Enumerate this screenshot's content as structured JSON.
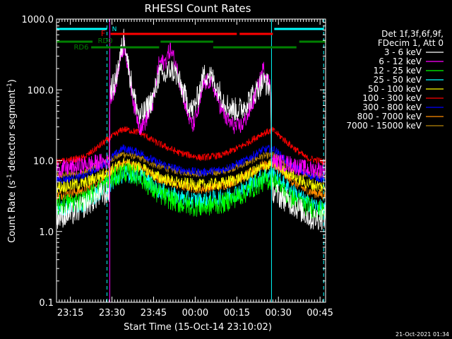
{
  "chart_data": {
    "type": "line",
    "title": "RHESSI Count Rates",
    "xlabel": "Start Time (15-Oct-14 23:10:02)",
    "ylabel_main": "Count Rate (s",
    "ylabel_sup1": "-1",
    "ylabel_mid": " detector segment",
    "ylabel_sup2": "-1",
    "ylabel_end": ")",
    "x_unit": "minutes after 23:10:02",
    "xlim": [
      0,
      97
    ],
    "ylim": [
      0.1,
      1000
    ],
    "yscale": "log",
    "x_ticks": [
      {
        "pos": 5,
        "label": "23:15"
      },
      {
        "pos": 20,
        "label": "23:30"
      },
      {
        "pos": 35,
        "label": "23:45"
      },
      {
        "pos": 50,
        "label": "00:00"
      },
      {
        "pos": 65,
        "label": "00:15"
      },
      {
        "pos": 80,
        "label": "00:30"
      },
      {
        "pos": 95,
        "label": "00:45"
      }
    ],
    "y_ticks": [
      {
        "value": 0.1,
        "label": "0.1"
      },
      {
        "value": 1,
        "label": "1.0"
      },
      {
        "value": 10,
        "label": "10.0"
      },
      {
        "value": 100,
        "label": "100.0"
      },
      {
        "value": 1000,
        "label": "1000.0"
      }
    ],
    "legend": {
      "header1": "Det 1f,3f,6f,9f,",
      "header2": "FDecim 1, Att 0",
      "placement": "right"
    },
    "series": [
      {
        "name": "3 - 6 keV",
        "color": "#ffffff",
        "points": [
          [
            0,
            1.6
          ],
          [
            6,
            1.8
          ],
          [
            12,
            2.6
          ],
          [
            16,
            3.3
          ],
          [
            19,
            3.5
          ],
          [
            19.2,
            100
          ],
          [
            21,
            120
          ],
          [
            23,
            300
          ],
          [
            24.5,
            600
          ],
          [
            26,
            200
          ],
          [
            28,
            80
          ],
          [
            30,
            40
          ],
          [
            32,
            50
          ],
          [
            35,
            80
          ],
          [
            37,
            170
          ],
          [
            39,
            150
          ],
          [
            41,
            200
          ],
          [
            43,
            170
          ],
          [
            45,
            110
          ],
          [
            47,
            70
          ],
          [
            49,
            50
          ],
          [
            51,
            80
          ],
          [
            53,
            160
          ],
          [
            55,
            165
          ],
          [
            57,
            130
          ],
          [
            59,
            90
          ],
          [
            61,
            65
          ],
          [
            63,
            55
          ],
          [
            65,
            52
          ],
          [
            67,
            55
          ],
          [
            69,
            70
          ],
          [
            71,
            85
          ],
          [
            73,
            110
          ],
          [
            74.5,
            130
          ],
          [
            76,
            120
          ],
          [
            77.3,
            100
          ],
          [
            77.5,
            4
          ],
          [
            80,
            3.2
          ],
          [
            84,
            2.6
          ],
          [
            88,
            2
          ],
          [
            92,
            1.5
          ],
          [
            97,
            1.6
          ]
        ],
        "noise": 0.35
      },
      {
        "name": "6 - 12 keV",
        "color": "#ff00ff",
        "points": [
          [
            0,
            7.5
          ],
          [
            6,
            8
          ],
          [
            12,
            9
          ],
          [
            16,
            9.5
          ],
          [
            19,
            10
          ],
          [
            19.2,
            80
          ],
          [
            21,
            100
          ],
          [
            23,
            280
          ],
          [
            24.5,
            450
          ],
          [
            26,
            180
          ],
          [
            28,
            60
          ],
          [
            30,
            30
          ],
          [
            32,
            35
          ],
          [
            35,
            70
          ],
          [
            37,
            250
          ],
          [
            39,
            240
          ],
          [
            41,
            380
          ],
          [
            43,
            230
          ],
          [
            45,
            110
          ],
          [
            47,
            50
          ],
          [
            49,
            30
          ],
          [
            51,
            50
          ],
          [
            53,
            120
          ],
          [
            55,
            135
          ],
          [
            57,
            100
          ],
          [
            59,
            60
          ],
          [
            61,
            40
          ],
          [
            63,
            33
          ],
          [
            65,
            30
          ],
          [
            67,
            32
          ],
          [
            69,
            45
          ],
          [
            71,
            70
          ],
          [
            73,
            120
          ],
          [
            74.5,
            200
          ],
          [
            76,
            150
          ],
          [
            77.3,
            100
          ],
          [
            77.5,
            10
          ],
          [
            80,
            9.5
          ],
          [
            84,
            9
          ],
          [
            88,
            8
          ],
          [
            92,
            7.5
          ],
          [
            97,
            7.5
          ]
        ],
        "noise": 0.25
      },
      {
        "name": "12 - 25 keV",
        "color": "#00ff00",
        "points": [
          [
            0,
            2.3
          ],
          [
            10,
            2.8
          ],
          [
            17,
            4.5
          ],
          [
            24,
            7
          ],
          [
            30,
            6
          ],
          [
            36,
            3.5
          ],
          [
            44,
            2.5
          ],
          [
            52,
            2.2
          ],
          [
            60,
            2.5
          ],
          [
            68,
            3.5
          ],
          [
            74,
            5
          ],
          [
            78,
            5.5
          ],
          [
            84,
            3
          ],
          [
            90,
            2.3
          ],
          [
            97,
            1.8
          ]
        ],
        "noise": 0.3
      },
      {
        "name": "25 - 50 keV",
        "color": "#00ffff",
        "points": [
          [
            0,
            2.0
          ],
          [
            10,
            2.5
          ],
          [
            17,
            4
          ],
          [
            24,
            6.5
          ],
          [
            30,
            6.2
          ],
          [
            36,
            4
          ],
          [
            44,
            3
          ],
          [
            52,
            2.7
          ],
          [
            60,
            3
          ],
          [
            68,
            4
          ],
          [
            74,
            6
          ],
          [
            78,
            6.5
          ],
          [
            84,
            4
          ],
          [
            90,
            2.6
          ],
          [
            97,
            2.0
          ]
        ],
        "noise": 0.25
      },
      {
        "name": "50 - 100 keV",
        "color": "#ffff00",
        "points": [
          [
            0,
            4.2
          ],
          [
            10,
            4.8
          ],
          [
            17,
            6.5
          ],
          [
            24,
            9
          ],
          [
            30,
            8
          ],
          [
            36,
            6
          ],
          [
            44,
            4.8
          ],
          [
            52,
            4.5
          ],
          [
            60,
            4.8
          ],
          [
            68,
            6
          ],
          [
            74,
            8
          ],
          [
            78,
            9
          ],
          [
            84,
            6.5
          ],
          [
            90,
            4.8
          ],
          [
            97,
            4.2
          ]
        ],
        "noise": 0.18
      },
      {
        "name": "100 - 300 keV",
        "color": "#ff0000",
        "points": [
          [
            0,
            9.5
          ],
          [
            10,
            11
          ],
          [
            17,
            18
          ],
          [
            24,
            28
          ],
          [
            30,
            25
          ],
          [
            36,
            18
          ],
          [
            44,
            13
          ],
          [
            52,
            11
          ],
          [
            60,
            12
          ],
          [
            68,
            17
          ],
          [
            74,
            24
          ],
          [
            78,
            27
          ],
          [
            84,
            17
          ],
          [
            90,
            11
          ],
          [
            97,
            9.5
          ]
        ],
        "noise": 0.1
      },
      {
        "name": "300 - 800 keV",
        "color": "#0000ff",
        "points": [
          [
            0,
            5.3
          ],
          [
            10,
            6
          ],
          [
            17,
            9
          ],
          [
            24,
            15
          ],
          [
            30,
            13
          ],
          [
            36,
            9.5
          ],
          [
            44,
            7.5
          ],
          [
            52,
            6.8
          ],
          [
            60,
            7.5
          ],
          [
            68,
            10
          ],
          [
            74,
            14
          ],
          [
            78,
            15
          ],
          [
            84,
            9
          ],
          [
            90,
            6.5
          ],
          [
            97,
            5.3
          ]
        ],
        "noise": 0.12
      },
      {
        "name": "800 - 7000 keV",
        "color": "#ff8c00",
        "points": [
          [
            0,
            3.2
          ],
          [
            10,
            3.8
          ],
          [
            17,
            5.8
          ],
          [
            24,
            9.5
          ],
          [
            30,
            8
          ],
          [
            36,
            5.8
          ],
          [
            44,
            4.5
          ],
          [
            52,
            4
          ],
          [
            60,
            4.5
          ],
          [
            68,
            6
          ],
          [
            74,
            8.5
          ],
          [
            78,
            9
          ],
          [
            84,
            5.5
          ],
          [
            90,
            3.8
          ],
          [
            97,
            3.2
          ]
        ],
        "noise": 0.15
      },
      {
        "name": "7000 - 15000 keV",
        "color": "#b8860b",
        "points": [
          [
            0,
            6
          ],
          [
            10,
            6.8
          ],
          [
            17,
            9.5
          ],
          [
            24,
            12.5
          ],
          [
            30,
            11
          ],
          [
            36,
            8.5
          ],
          [
            44,
            7
          ],
          [
            52,
            6.5
          ],
          [
            60,
            7
          ],
          [
            68,
            9
          ],
          [
            74,
            11.5
          ],
          [
            78,
            12
          ],
          [
            84,
            8.5
          ],
          [
            90,
            6.5
          ],
          [
            97,
            6
          ]
        ],
        "noise": 0.1
      }
    ],
    "vertical_lines": [
      {
        "x": 0,
        "color": "#00ffff",
        "dashed": false
      },
      {
        "x": 18.2,
        "color": "#00ffff",
        "dashed": true
      },
      {
        "x": 19.2,
        "color": "#ff00ff",
        "dashed": false
      },
      {
        "x": 77.5,
        "color": "#00ffff",
        "dashed": false
      },
      {
        "x": 96.3,
        "color": "#00ffff",
        "dashed": true
      }
    ],
    "flag_bars": [
      {
        "label": "N",
        "color": "#00ffff",
        "segments": [
          [
            0,
            18.2
          ],
          [
            78.5,
            96.3
          ]
        ],
        "row": 0
      },
      {
        "label": "F",
        "color": "#ff0000",
        "segments": [
          [
            19.5,
            65
          ],
          [
            66,
            78
          ]
        ],
        "row": 1
      },
      {
        "label": "RD0",
        "color": "#008000",
        "segments": [
          [
            0,
            13
          ],
          [
            37.5,
            56.5
          ],
          [
            87.5,
            97
          ]
        ],
        "row": 2
      },
      {
        "label": "RD6",
        "color": "#008000",
        "segments": [
          [
            12.5,
            37
          ],
          [
            56.5,
            86.5
          ]
        ],
        "row": 3
      }
    ],
    "timestamp": "21-Oct-2021 01:34"
  }
}
